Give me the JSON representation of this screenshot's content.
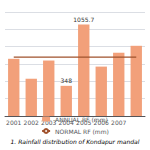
{
  "chart_data": {
    "type": "bar",
    "title": "1. Rainfall distribution of Kondapur mandal",
    "categories": [
      "2001",
      "2002",
      "2003",
      "2004",
      "2005",
      "2006",
      "2007",
      null
    ],
    "series": [
      {
        "name": "ANNUAL RF (mm)",
        "type": "bar",
        "color": "#F2A07A",
        "values": [
          660,
          430,
          640,
          348,
          1055.7,
          570,
          730,
          810
        ]
      },
      {
        "name": "NORMAL RF (mm)",
        "type": "line",
        "color": "#A0522D",
        "values": [
          680,
          680,
          680,
          680,
          680,
          680,
          680,
          680
        ]
      }
    ],
    "annotations": [
      {
        "text": "348",
        "x": "2004",
        "y": 348
      },
      {
        "text": "1055.7",
        "x": "2005",
        "y": 1055.7
      }
    ],
    "ylim": [
      0,
      1200
    ],
    "yticks": [
      0,
      200,
      400,
      600,
      800,
      1000,
      1200
    ],
    "grid": true,
    "legend": "bottom",
    "tick_labels": "x"
  }
}
